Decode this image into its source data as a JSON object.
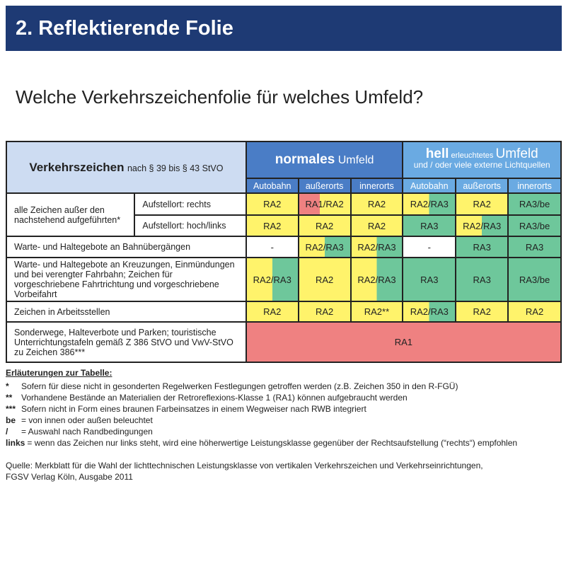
{
  "title": "2. Reflektierende Folie",
  "question": "Welche Verkehrszeichenfolie für welches Umfeld?",
  "colors": {
    "titlebar": "#1e3a74",
    "yellow": "#fff36b",
    "green": "#6ec79b",
    "red": "#ef8181",
    "normal_header": "#4a7dc6",
    "bright_header": "#6aaae2"
  },
  "table": {
    "left_header_bold": "Verkehrszeichen",
    "left_header_rest": "nach § 39 bis § 43 StVO",
    "normal_bold": "normales",
    "normal_rest": "Umfeld",
    "bright_bold": "hell",
    "bright_small": "erleuchtetes",
    "bright_rest": "Umfeld",
    "bright_sub": "und / oder viele externe Lichtquellen",
    "subcols": [
      "Autobahn",
      "außerorts",
      "innerorts",
      "Autobahn",
      "außerorts",
      "innerorts"
    ],
    "group_label": "alle Zeichen außer den nachstehend aufgeführten*",
    "rows": [
      {
        "label": "Aufstellort: rechts",
        "cells": [
          {
            "t": "RA2",
            "f": "y"
          },
          {
            "t": "RA1/RA2",
            "f": "ry"
          },
          {
            "t": "RA2",
            "f": "y"
          },
          {
            "t": "RA2/RA3",
            "f": "yg"
          },
          {
            "t": "RA2",
            "f": "y"
          },
          {
            "t": "RA3/be",
            "f": "g"
          }
        ]
      },
      {
        "label": "Aufstellort: hoch/links",
        "cells": [
          {
            "t": "RA2",
            "f": "y"
          },
          {
            "t": "RA2",
            "f": "y"
          },
          {
            "t": "RA2",
            "f": "y"
          },
          {
            "t": "RA3",
            "f": "g"
          },
          {
            "t": "RA2/RA3",
            "f": "yg"
          },
          {
            "t": "RA3/be",
            "f": "g"
          }
        ]
      },
      {
        "label": "Warte- und Haltegebote an Bahnübergängen",
        "cells": [
          {
            "t": "-",
            "f": "w"
          },
          {
            "t": "RA2/RA3",
            "f": "yg"
          },
          {
            "t": "RA2/RA3",
            "f": "yg"
          },
          {
            "t": "-",
            "f": "w"
          },
          {
            "t": "RA3",
            "f": "g"
          },
          {
            "t": "RA3",
            "f": "g"
          }
        ]
      },
      {
        "label": "Warte- und Haltegebote an Kreuzungen, Einmündungen und bei verengter Fahrbahn; Zeichen für vorgeschriebene Fahrtrichtung und vorgeschriebene Vorbeifahrt",
        "cells": [
          {
            "t": "RA2/RA3",
            "f": "yg"
          },
          {
            "t": "RA2",
            "f": "y"
          },
          {
            "t": "RA2/RA3",
            "f": "yg"
          },
          {
            "t": "RA3",
            "f": "g"
          },
          {
            "t": "RA3",
            "f": "g"
          },
          {
            "t": "RA3/be",
            "f": "g"
          }
        ]
      },
      {
        "label": "Zeichen in Arbeitsstellen",
        "cells": [
          {
            "t": "RA2",
            "f": "y"
          },
          {
            "t": "RA2",
            "f": "y"
          },
          {
            "t": "RA2**",
            "f": "y"
          },
          {
            "t": "RA2/RA3",
            "f": "yg"
          },
          {
            "t": "RA2",
            "f": "y"
          },
          {
            "t": "RA2",
            "f": "y"
          }
        ]
      },
      {
        "label": "Sonderwege, Halteverbote und Parken; touristische Unterrichtungstafeln gemäß Z 386 StVO und VwV-StVO zu Zeichen 386***",
        "span": {
          "t": "RA1",
          "f": "r"
        }
      }
    ]
  },
  "notes": {
    "heading": "Erläuterungen zur Tabelle:",
    "items": [
      {
        "k": "*",
        "v": "Sofern für diese nicht in gesonderten Regelwerken Festlegungen getroffen werden (z.B. Zeichen 350 in den R-FGÜ)"
      },
      {
        "k": "**",
        "v": "Vorhandene Bestände an Materialien der Retroreflexions-Klasse 1 (RA1) können aufgebraucht werden"
      },
      {
        "k": "***",
        "v": "Sofern nicht in Form eines braunen Farbeinsatzes in einem Wegweiser nach RWB integriert"
      },
      {
        "k": "be",
        "v": "= von innen oder außen beleuchtet"
      },
      {
        "k": "/",
        "v": "= Auswahl nach Randbedingungen"
      },
      {
        "k": "links",
        "v": "= wenn das Zeichen nur links steht, wird eine höherwertige Leistungsklasse gegenüber der Rechtsaufstellung (“rechts“) empfohlen"
      }
    ]
  },
  "source": [
    "Quelle: Merkblatt für die Wahl der lichttechnischen Leistungsklasse von vertikalen Verkehrszeichen und Verkehrseinrichtungen,",
    "FGSV Verlag Köln, Ausgabe 2011"
  ]
}
